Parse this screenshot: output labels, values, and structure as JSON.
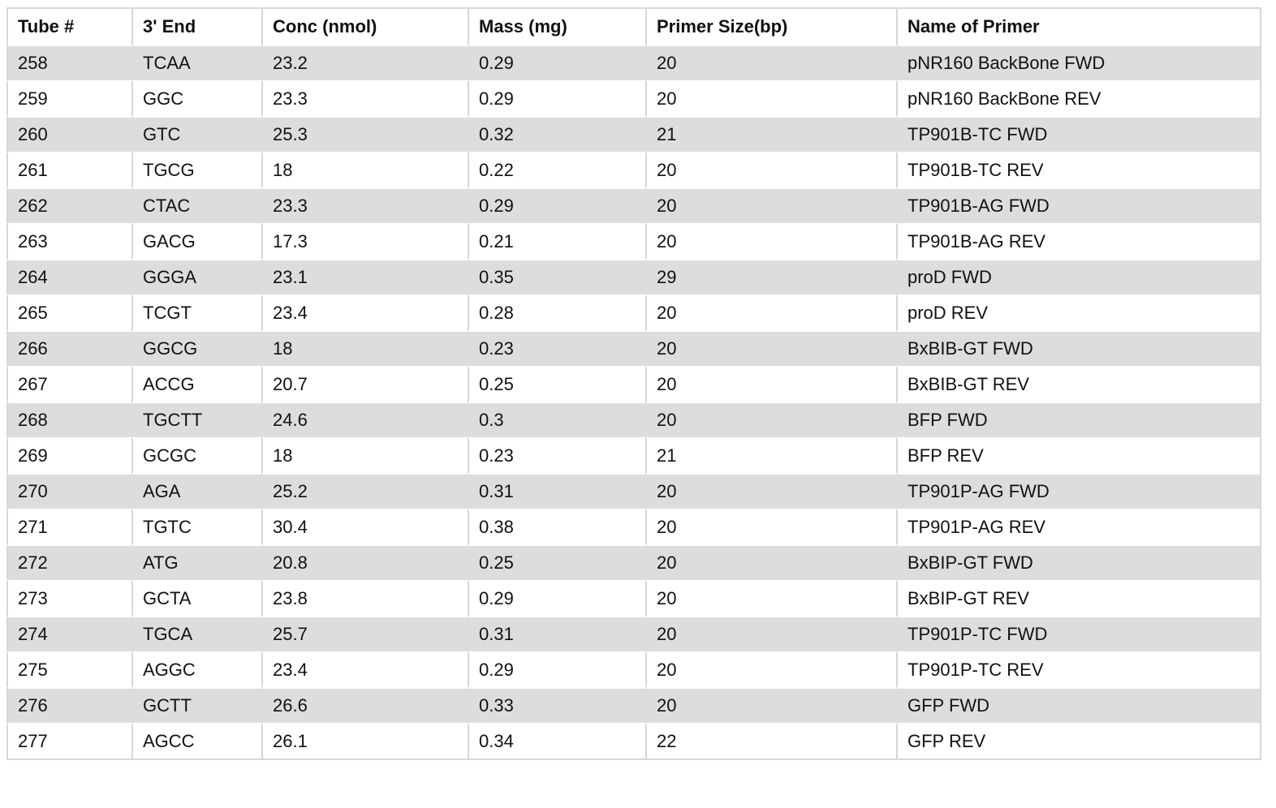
{
  "table": {
    "headers": [
      "Tube #",
      "3' End",
      "Conc (nmol)",
      "Mass (mg)",
      "Primer Size(bp)",
      "Name of Primer"
    ],
    "rows": [
      [
        "258",
        "TCAA",
        "23.2",
        "0.29",
        "20",
        "pNR160 BackBone FWD"
      ],
      [
        "259",
        "GGC",
        "23.3",
        "0.29",
        "20",
        "pNR160 BackBone REV"
      ],
      [
        "260",
        "GTC",
        "25.3",
        "0.32",
        "21",
        "TP901B-TC FWD"
      ],
      [
        "261",
        "TGCG",
        "18",
        "0.22",
        "20",
        "TP901B-TC REV"
      ],
      [
        "262",
        "CTAC",
        "23.3",
        "0.29",
        "20",
        "TP901B-AG FWD"
      ],
      [
        "263",
        "GACG",
        "17.3",
        "0.21",
        "20",
        "TP901B-AG REV"
      ],
      [
        "264",
        "GGGA",
        "23.1",
        "0.35",
        "29",
        "proD FWD"
      ],
      [
        "265",
        "TCGT",
        "23.4",
        "0.28",
        "20",
        "proD REV"
      ],
      [
        "266",
        "GGCG",
        "18",
        "0.23",
        "20",
        "BxBIB-GT FWD"
      ],
      [
        "267",
        "ACCG",
        "20.7",
        "0.25",
        "20",
        "BxBIB-GT REV"
      ],
      [
        "268",
        "TGCTT",
        "24.6",
        "0.3",
        "20",
        "BFP FWD"
      ],
      [
        "269",
        "GCGC",
        "18",
        "0.23",
        "21",
        "BFP REV"
      ],
      [
        "270",
        "AGA",
        "25.2",
        "0.31",
        "20",
        "TP901P-AG FWD"
      ],
      [
        "271",
        "TGTC",
        "30.4",
        "0.38",
        "20",
        "TP901P-AG REV"
      ],
      [
        "272",
        "ATG",
        "20.8",
        "0.25",
        "20",
        "BxBIP-GT FWD"
      ],
      [
        "273",
        "GCTA",
        "23.8",
        "0.29",
        "20",
        "BxBIP-GT REV"
      ],
      [
        "274",
        "TGCA",
        "25.7",
        "0.31",
        "20",
        "TP901P-TC FWD"
      ],
      [
        "275",
        "AGGC",
        "23.4",
        "0.29",
        "20",
        "TP901P-TC REV"
      ],
      [
        "276",
        "GCTT",
        "26.6",
        "0.33",
        "20",
        "GFP FWD"
      ],
      [
        "277",
        "AGCC",
        "26.1",
        "0.34",
        "22",
        "GFP REV"
      ]
    ]
  },
  "colors": {
    "stripe": "#dddddd",
    "border": "#d6d6d6",
    "text": "#111111"
  }
}
